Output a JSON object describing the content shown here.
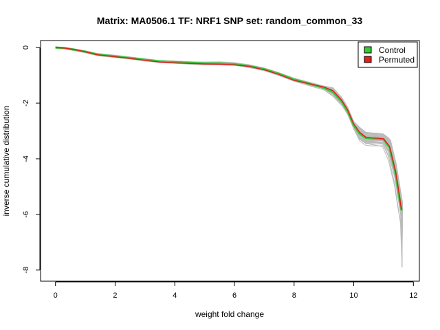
{
  "chart_data": {
    "type": "line",
    "title": "Matrix: MA0506.1 TF: NRF1 SNP set: random_common_33",
    "xlabel": "weight fold change",
    "ylabel": "inverse cumulative distribution",
    "xlim": [
      -0.5,
      12.2
    ],
    "ylim": [
      -8.4,
      0.25
    ],
    "xticks": [
      0,
      2,
      4,
      6,
      8,
      10,
      12
    ],
    "yticks": [
      0,
      -2,
      -4,
      -6,
      -8
    ],
    "legend": {
      "position": "top-right",
      "entries": [
        "Control",
        "Permuted"
      ]
    },
    "colors": {
      "Control": "#33cc33",
      "Permuted": "#dd2222",
      "permutation_band": "#bbbbbb"
    },
    "series": [
      {
        "name": "Control",
        "x": [
          0,
          0.3,
          0.6,
          1.0,
          1.4,
          2.0,
          2.5,
          3.0,
          3.5,
          4.0,
          4.5,
          5.0,
          5.5,
          6.0,
          6.5,
          7.0,
          7.5,
          8.0,
          8.5,
          9.0,
          9.3,
          9.6,
          9.8,
          10.0,
          10.2,
          10.4,
          10.6,
          10.8,
          11.0,
          11.2,
          11.4,
          11.5,
          11.6
        ],
        "y": [
          0,
          -0.02,
          -0.07,
          -0.15,
          -0.25,
          -0.32,
          -0.38,
          -0.44,
          -0.5,
          -0.52,
          -0.55,
          -0.57,
          -0.57,
          -0.6,
          -0.67,
          -0.78,
          -0.95,
          -1.15,
          -1.3,
          -1.45,
          -1.6,
          -1.95,
          -2.3,
          -2.8,
          -3.1,
          -3.25,
          -3.27,
          -3.28,
          -3.3,
          -3.6,
          -4.5,
          -5.2,
          -5.85
        ]
      },
      {
        "name": "Permuted",
        "x": [
          0,
          0.3,
          0.6,
          1.0,
          1.4,
          2.0,
          2.5,
          3.0,
          3.5,
          4.0,
          4.5,
          5.0,
          5.5,
          6.0,
          6.5,
          7.0,
          7.5,
          8.0,
          8.5,
          9.0,
          9.3,
          9.6,
          9.8,
          10.0,
          10.2,
          10.4,
          10.6,
          10.8,
          11.0,
          11.2,
          11.4,
          11.5,
          11.6
        ],
        "y": [
          0,
          -0.02,
          -0.07,
          -0.15,
          -0.26,
          -0.33,
          -0.39,
          -0.46,
          -0.52,
          -0.55,
          -0.57,
          -0.59,
          -0.6,
          -0.62,
          -0.68,
          -0.8,
          -0.97,
          -1.18,
          -1.3,
          -1.42,
          -1.55,
          -1.9,
          -2.25,
          -2.75,
          -3.05,
          -3.22,
          -3.25,
          -3.26,
          -3.28,
          -3.55,
          -4.45,
          -5.1,
          -5.85
        ]
      }
    ]
  }
}
